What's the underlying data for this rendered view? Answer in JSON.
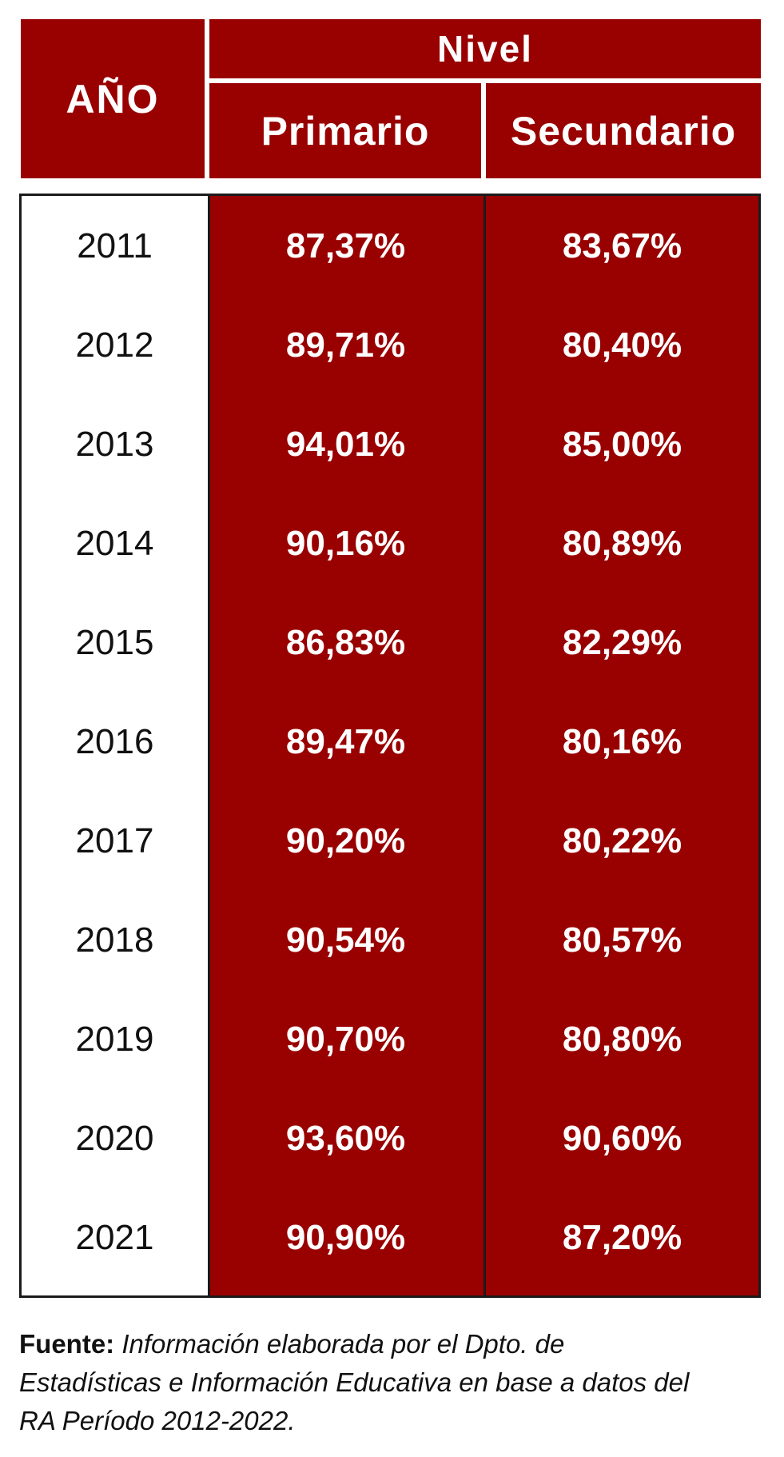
{
  "chart_data": {
    "type": "table",
    "columns": {
      "year": "AÑO",
      "group": "Nivel",
      "primario": "Primario",
      "secundario": "Secundario"
    },
    "rows": [
      {
        "year": "2011",
        "primario": "87,37%",
        "secundario": "83,67%"
      },
      {
        "year": "2012",
        "primario": "89,71%",
        "secundario": "80,40%"
      },
      {
        "year": "2013",
        "primario": "94,01%",
        "secundario": "85,00%"
      },
      {
        "year": "2014",
        "primario": "90,16%",
        "secundario": "80,89%"
      },
      {
        "year": "2015",
        "primario": "86,83%",
        "secundario": "82,29%"
      },
      {
        "year": "2016",
        "primario": "89,47%",
        "secundario": "80,16%"
      },
      {
        "year": "2017",
        "primario": "90,20%",
        "secundario": "80,22%"
      },
      {
        "year": "2018",
        "primario": "90,54%",
        "secundario": "80,57%"
      },
      {
        "year": "2019",
        "primario": "90,70%",
        "secundario": "80,80%"
      },
      {
        "year": "2020",
        "primario": "93,60%",
        "secundario": "90,60%"
      },
      {
        "year": "2021",
        "primario": "90,90%",
        "secundario": "87,20%"
      }
    ]
  },
  "source": {
    "label": "Fuente:",
    "line1": "Información elaborada por el Dpto. de",
    "line2": "Estadísticas e Información Educativa en base a datos del",
    "line3": "RA Período 2012-2022."
  },
  "colors": {
    "header_bg": "#990000",
    "header_text": "#ffffff",
    "border": "#1a1a1a"
  }
}
